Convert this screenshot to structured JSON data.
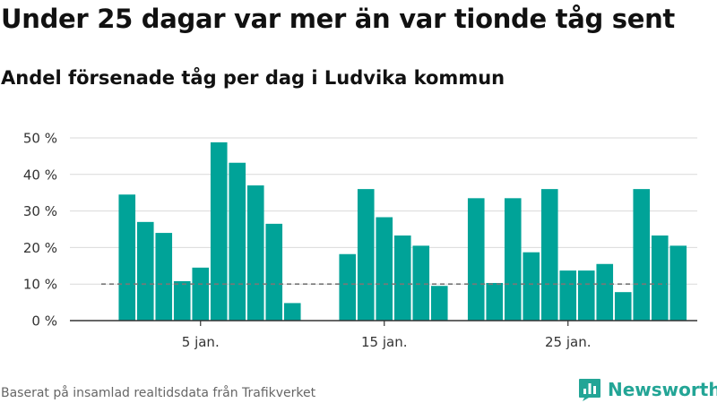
{
  "title": "Under 25 dagar var mer än var tionde tåg sent",
  "subtitle": "Andel försenade tåg per dag i Ludvika kommun",
  "footer": {
    "source": "Baserat på insamlad realtidsdata från Trafikverket",
    "brand": "Newsworthy",
    "brand_icon": "newsworthy-logo-icon"
  },
  "colors": {
    "bar": "#00a398",
    "reference_line": "#777777",
    "grid": "#d9d9d9",
    "axis": "#333333",
    "brand": "#23a596"
  },
  "chart_data": {
    "type": "bar",
    "x_unit": "day of January",
    "x": [
      1,
      2,
      3,
      4,
      5,
      6,
      7,
      8,
      9,
      10,
      11,
      12,
      13,
      14,
      15,
      16,
      17,
      18,
      19,
      20,
      21,
      22,
      23,
      24,
      25,
      26,
      27,
      28,
      29,
      30,
      31
    ],
    "series": [
      {
        "values": [
          34.5,
          27,
          24,
          10.8,
          14.5,
          48.8,
          43.2,
          37,
          26.5,
          4.8,
          null,
          null,
          18.2,
          36,
          28.3,
          23.3,
          20.5,
          9.5,
          null,
          33.5,
          10.3,
          33.5,
          18.7,
          36,
          13.7,
          13.7,
          15.5,
          7.8,
          36,
          23.3,
          20.5
        ]
      }
    ],
    "reference_line": {
      "value": 10,
      "style": "dashed"
    },
    "y_ticks": [
      0,
      10,
      20,
      30,
      40,
      50
    ],
    "y_tick_labels": [
      "0 %",
      "10 %",
      "20 %",
      "30 %",
      "40 %",
      "50 %"
    ],
    "x_ticks": [
      5,
      15,
      25
    ],
    "x_tick_labels": [
      "5 jan.",
      "15 jan.",
      "25 jan."
    ],
    "ylim": [
      0,
      50
    ],
    "xlabel": "",
    "ylabel": "",
    "grid": true
  }
}
